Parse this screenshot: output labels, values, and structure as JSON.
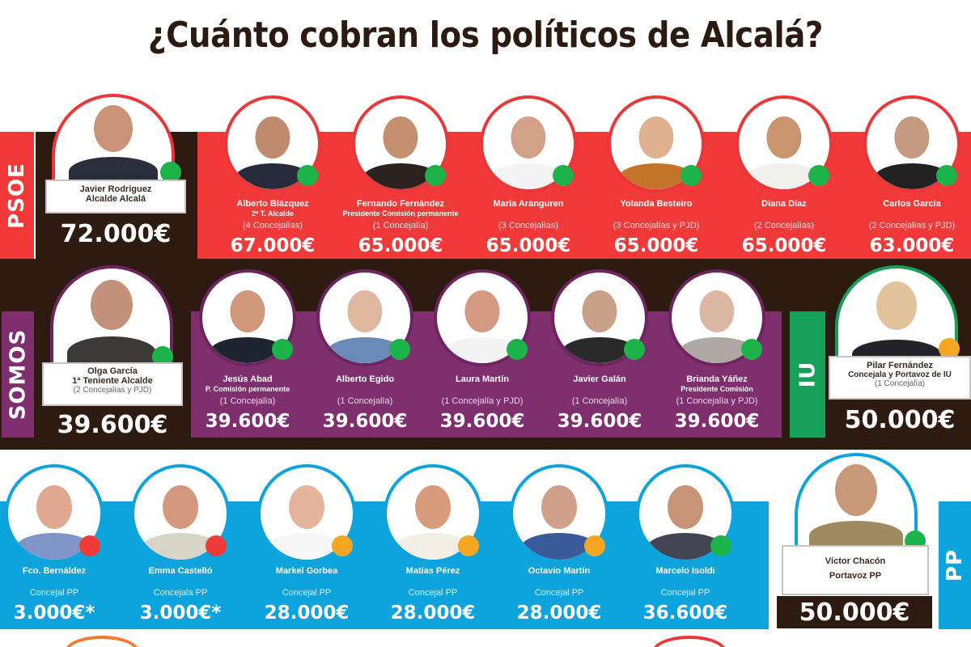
{
  "title": "¿Cuánto cobran los políticos de Alcalá?",
  "colors": {
    "dark": "#2d1a10",
    "psoe": "#f2393a",
    "somos": "#7f2e6e",
    "iu": "#17a05a",
    "pp": "#0da3dc",
    "dot_green": "#1bb34a",
    "dot_orange": "#f5a623",
    "dot_red": "#f03a3a"
  },
  "parties": {
    "psoe": {
      "label": "PSOE",
      "leader": {
        "name": "Javier Rodriguez",
        "role": "Alcalde Alcalá",
        "salary": "72.000€",
        "dot": "green"
      },
      "members": [
        {
          "name": "Alberto Blázquez",
          "role": "2º T. Alcalde",
          "note": "(4 Concejalías)",
          "salary": "67.000€",
          "dot": "green"
        },
        {
          "name": "Fernando Fernández",
          "role": "Presidente Comisión permanente",
          "note": "(1 Concejalía)",
          "salary": "65.000€",
          "dot": "green"
        },
        {
          "name": "María Aranguren",
          "role": "",
          "note": "(3 Concejalías)",
          "salary": "65.000€",
          "dot": "green"
        },
        {
          "name": "Yolanda Besteiro",
          "role": "",
          "note": "(3 Concejalías y PJD)",
          "salary": "65.000€",
          "dot": "green"
        },
        {
          "name": "Diana Díaz",
          "role": "",
          "note": "(2 Concejalías)",
          "salary": "65.000€",
          "dot": "green"
        },
        {
          "name": "Carlos García",
          "role": "",
          "note": "(2 Concejalías y PJD)",
          "salary": "63.000€",
          "dot": "green"
        }
      ]
    },
    "somos": {
      "label": "SOMOS",
      "leader": {
        "name": "Olga García",
        "role": "1ª Teniente Alcalde",
        "note": "(2 Concejalías y PJD)",
        "salary": "39.600€",
        "dot": "green"
      },
      "members": [
        {
          "name": "Jesús Abad",
          "role": "P. Comisión permanente",
          "note": "(1 Concejalía)",
          "salary": "39.600€",
          "dot": "green"
        },
        {
          "name": "Alberto Egido",
          "role": "",
          "note": "(1 Concejalía)",
          "salary": "39.600€",
          "dot": "green"
        },
        {
          "name": "Laura Martín",
          "role": "",
          "note": "(1 Concejalía y PJD)",
          "salary": "39.600€",
          "dot": "green"
        },
        {
          "name": "Javier Galán",
          "role": "",
          "note": "(1 Concejalía)",
          "salary": "39.600€",
          "dot": "green"
        },
        {
          "name": "Brianda Yáñez",
          "role": "Presidente Comisión",
          "note": "(1 Concejalía y PJD)",
          "salary": "39.600€",
          "dot": "green"
        }
      ]
    },
    "iu": {
      "label": "IU",
      "leader": {
        "name": "Pilar Fernández",
        "role": "Concejala y Portavoz de IU",
        "note": "(1 Concejalía)",
        "salary": "50.000€",
        "dot": "orange"
      }
    },
    "pp": {
      "label": "PP",
      "leader": {
        "name": "Víctor Chacón",
        "role": "Portavoz PP",
        "salary": "50.000€",
        "dot": "green"
      },
      "members": [
        {
          "name": "Fco. Bernáldez",
          "note": "Concejal PP",
          "salary": "3.000€*",
          "dot": "red"
        },
        {
          "name": "Emma Castelló",
          "note": "Concejala PP",
          "salary": "3.000€*",
          "dot": "red"
        },
        {
          "name": "Markel Gorbea",
          "note": "Concejal PP",
          "salary": "28.000€",
          "dot": "orange"
        },
        {
          "name": "Matías Pérez",
          "note": "Concejal PP",
          "salary": "28.000€",
          "dot": "orange"
        },
        {
          "name": "Octavio Martín",
          "note": "Concejal PP",
          "salary": "28.000€",
          "dot": "orange"
        },
        {
          "name": "Marcelo Isoldi",
          "note": "Concejal PP",
          "salary": "36.600€",
          "dot": "green"
        }
      ]
    }
  }
}
